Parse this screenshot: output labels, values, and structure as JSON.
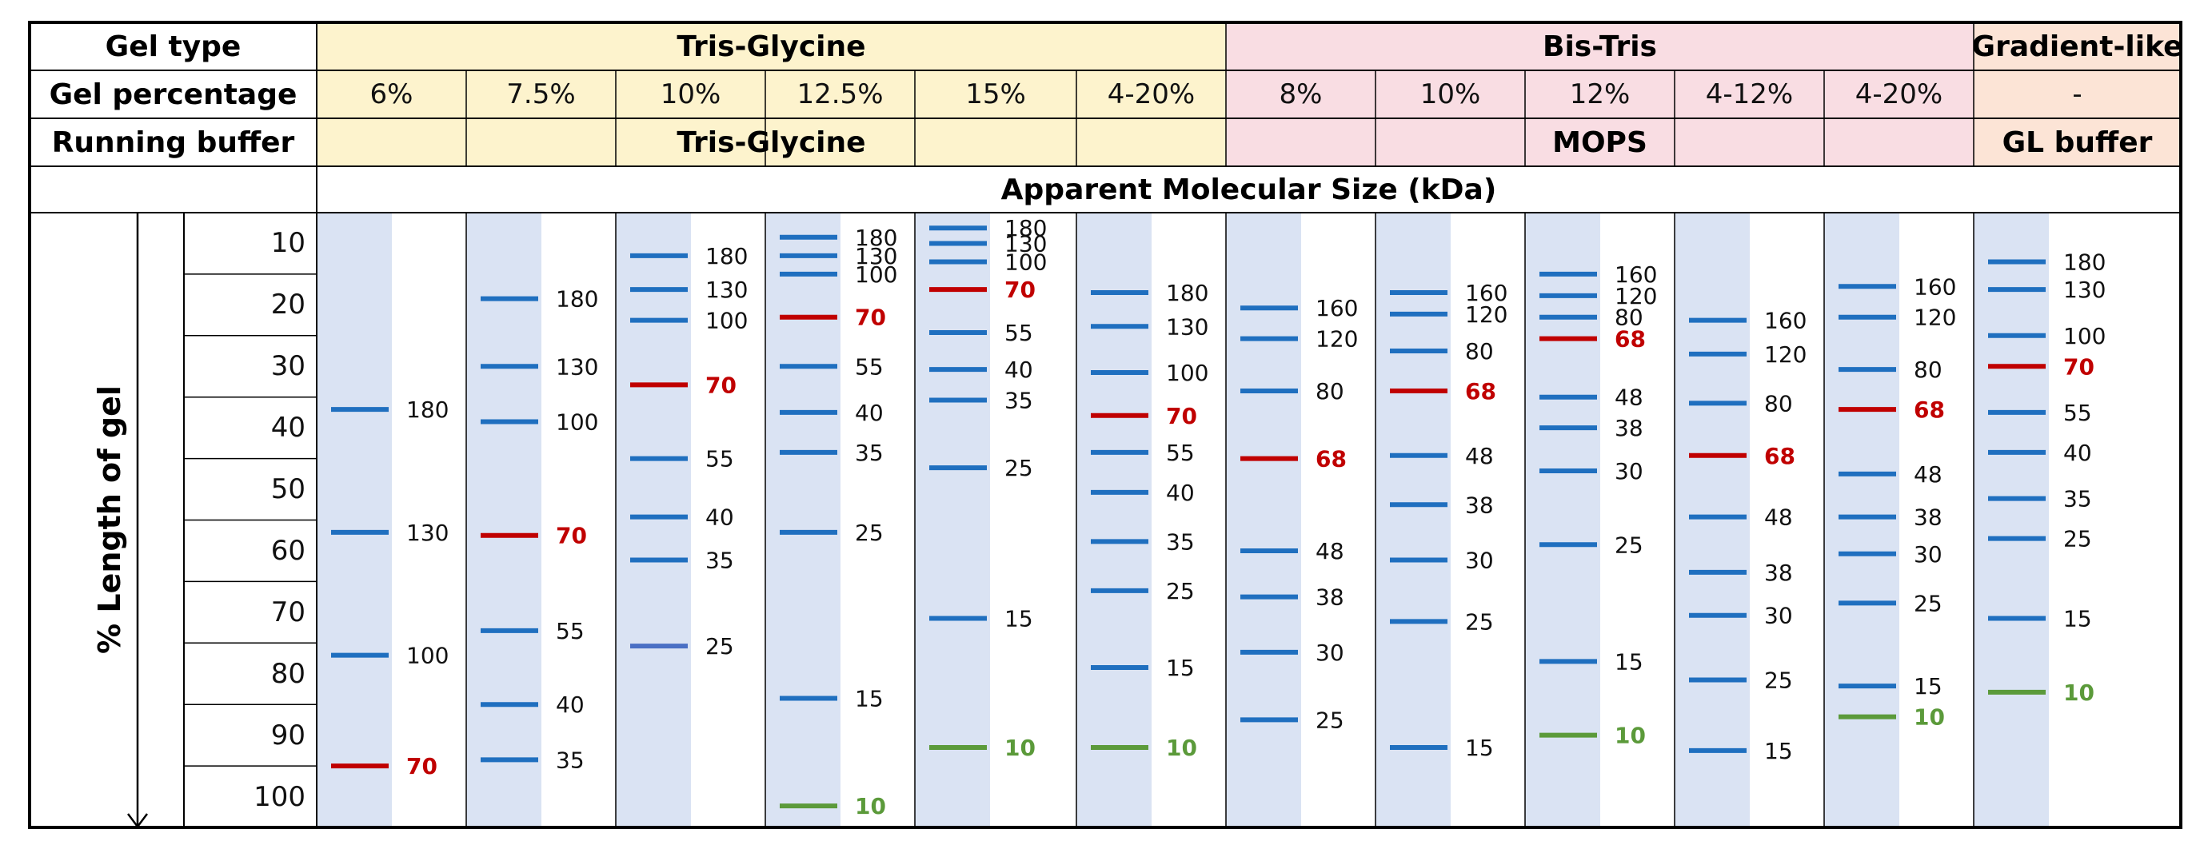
{
  "table": {
    "row_labels": {
      "gel_type": "Gel type",
      "gel_percentage": "Gel percentage",
      "running_buffer": "Running buffer"
    },
    "groups": [
      {
        "key": "tris",
        "type": "Tris-Glycine",
        "buffer": "Tris-Glycine",
        "lanes": [
          0,
          5
        ],
        "color": "#fdf3cd"
      },
      {
        "key": "bis",
        "type": "Bis-Tris",
        "buffer": "MOPS",
        "lanes": [
          6,
          10
        ],
        "color": "#f9dde3"
      },
      {
        "key": "grad",
        "type": "Gradient-like",
        "buffer": "GL buffer",
        "lanes": [
          11,
          11
        ],
        "color": "#fce4d6"
      }
    ],
    "apparent_size_label": "Apparent Molecular Size (kDa)",
    "y_axis_label": "% Length of gel",
    "ruler_ticks": [
      "10",
      "20",
      "30",
      "40",
      "50",
      "60",
      "70",
      "80",
      "90",
      "100"
    ]
  },
  "colors": {
    "lane_band": "#dae3f3",
    "marker_blue": "#1f6fbf",
    "marker_red": "#c00000",
    "marker_green": "#5b9a3a",
    "marker_purple_blue": "#4a6fc4"
  },
  "lanes": [
    {
      "percentage": "6%",
      "markers": [
        {
          "label": "180",
          "pos": 32,
          "color": "blue"
        },
        {
          "label": "130",
          "pos": 52,
          "color": "blue"
        },
        {
          "label": "100",
          "pos": 72,
          "color": "blue"
        },
        {
          "label": "70",
          "pos": 90,
          "color": "red"
        }
      ]
    },
    {
      "percentage": "7.5%",
      "markers": [
        {
          "label": "180",
          "pos": 14,
          "color": "blue"
        },
        {
          "label": "130",
          "pos": 25,
          "color": "blue"
        },
        {
          "label": "100",
          "pos": 34,
          "color": "blue"
        },
        {
          "label": "70",
          "pos": 52.5,
          "color": "red"
        },
        {
          "label": "55",
          "pos": 68,
          "color": "blue"
        },
        {
          "label": "40",
          "pos": 80,
          "color": "blue"
        },
        {
          "label": "35",
          "pos": 89,
          "color": "blue"
        }
      ]
    },
    {
      "percentage": "10%",
      "markers": [
        {
          "label": "180",
          "pos": 7,
          "color": "blue"
        },
        {
          "label": "130",
          "pos": 12.5,
          "color": "blue"
        },
        {
          "label": "100",
          "pos": 17.5,
          "color": "blue"
        },
        {
          "label": "70",
          "pos": 28,
          "color": "red"
        },
        {
          "label": "55",
          "pos": 40,
          "color": "blue"
        },
        {
          "label": "40",
          "pos": 49.5,
          "color": "blue"
        },
        {
          "label": "35",
          "pos": 56.5,
          "color": "blue"
        },
        {
          "label": "25",
          "pos": 70.5,
          "color": "purple_blue"
        }
      ]
    },
    {
      "percentage": "12.5%",
      "markers": [
        {
          "label": "180",
          "pos": 4,
          "color": "blue"
        },
        {
          "label": "130",
          "pos": 7,
          "color": "blue"
        },
        {
          "label": "100",
          "pos": 10,
          "color": "blue"
        },
        {
          "label": "70",
          "pos": 17,
          "color": "red"
        },
        {
          "label": "55",
          "pos": 25,
          "color": "blue"
        },
        {
          "label": "40",
          "pos": 32.5,
          "color": "blue"
        },
        {
          "label": "35",
          "pos": 39,
          "color": "blue"
        },
        {
          "label": "25",
          "pos": 52,
          "color": "blue"
        },
        {
          "label": "15",
          "pos": 79,
          "color": "blue"
        },
        {
          "label": "10",
          "pos": 96.5,
          "color": "green"
        }
      ]
    },
    {
      "percentage": "15%",
      "markers": [
        {
          "label": "180",
          "pos": 2.5,
          "color": "blue"
        },
        {
          "label": "130",
          "pos": 5,
          "color": "blue"
        },
        {
          "label": "100",
          "pos": 8,
          "color": "blue"
        },
        {
          "label": "70",
          "pos": 12.5,
          "color": "red"
        },
        {
          "label": "55",
          "pos": 19.5,
          "color": "blue"
        },
        {
          "label": "40",
          "pos": 25.5,
          "color": "blue"
        },
        {
          "label": "35",
          "pos": 30.5,
          "color": "blue"
        },
        {
          "label": "25",
          "pos": 41.5,
          "color": "blue"
        },
        {
          "label": "15",
          "pos": 66,
          "color": "blue"
        },
        {
          "label": "10",
          "pos": 87,
          "color": "green"
        }
      ]
    },
    {
      "percentage": "4-20%",
      "markers": [
        {
          "label": "180",
          "pos": 13,
          "color": "blue"
        },
        {
          "label": "130",
          "pos": 18.5,
          "color": "blue"
        },
        {
          "label": "100",
          "pos": 26,
          "color": "blue"
        },
        {
          "label": "70",
          "pos": 33,
          "color": "red"
        },
        {
          "label": "55",
          "pos": 39,
          "color": "blue"
        },
        {
          "label": "40",
          "pos": 45.5,
          "color": "blue"
        },
        {
          "label": "35",
          "pos": 53.5,
          "color": "blue"
        },
        {
          "label": "25",
          "pos": 61.5,
          "color": "blue"
        },
        {
          "label": "15",
          "pos": 74,
          "color": "blue"
        },
        {
          "label": "10",
          "pos": 87,
          "color": "green"
        }
      ]
    },
    {
      "percentage": "8%",
      "markers": [
        {
          "label": "160",
          "pos": 15.5,
          "color": "blue"
        },
        {
          "label": "120",
          "pos": 20.5,
          "color": "blue"
        },
        {
          "label": "80",
          "pos": 29,
          "color": "blue"
        },
        {
          "label": "68",
          "pos": 40,
          "color": "red"
        },
        {
          "label": "48",
          "pos": 55,
          "color": "blue"
        },
        {
          "label": "38",
          "pos": 62.5,
          "color": "blue"
        },
        {
          "label": "30",
          "pos": 71.5,
          "color": "blue"
        },
        {
          "label": "25",
          "pos": 82.5,
          "color": "blue"
        }
      ]
    },
    {
      "percentage": "10%",
      "markers": [
        {
          "label": "160",
          "pos": 13,
          "color": "blue"
        },
        {
          "label": "120",
          "pos": 16.5,
          "color": "blue"
        },
        {
          "label": "80",
          "pos": 22.5,
          "color": "blue"
        },
        {
          "label": "68",
          "pos": 29,
          "color": "red"
        },
        {
          "label": "48",
          "pos": 39.5,
          "color": "blue"
        },
        {
          "label": "38",
          "pos": 47.5,
          "color": "blue"
        },
        {
          "label": "30",
          "pos": 56.5,
          "color": "blue"
        },
        {
          "label": "25",
          "pos": 66.5,
          "color": "blue"
        },
        {
          "label": "15",
          "pos": 87,
          "color": "blue"
        }
      ]
    },
    {
      "percentage": "12%",
      "markers": [
        {
          "label": "160",
          "pos": 10,
          "color": "blue"
        },
        {
          "label": "120",
          "pos": 13.5,
          "color": "blue"
        },
        {
          "label": "80",
          "pos": 17,
          "color": "blue"
        },
        {
          "label": "68",
          "pos": 20.5,
          "color": "red"
        },
        {
          "label": "48",
          "pos": 30,
          "color": "blue"
        },
        {
          "label": "38",
          "pos": 35,
          "color": "blue"
        },
        {
          "label": "30",
          "pos": 42,
          "color": "blue"
        },
        {
          "label": "25",
          "pos": 54,
          "color": "blue"
        },
        {
          "label": "15",
          "pos": 73,
          "color": "blue"
        },
        {
          "label": "10",
          "pos": 85,
          "color": "green"
        }
      ]
    },
    {
      "percentage": "4-12%",
      "markers": [
        {
          "label": "160",
          "pos": 17.5,
          "color": "blue"
        },
        {
          "label": "120",
          "pos": 23,
          "color": "blue"
        },
        {
          "label": "80",
          "pos": 31,
          "color": "blue"
        },
        {
          "label": "68",
          "pos": 39.5,
          "color": "red"
        },
        {
          "label": "48",
          "pos": 49.5,
          "color": "blue"
        },
        {
          "label": "38",
          "pos": 58.5,
          "color": "blue"
        },
        {
          "label": "30",
          "pos": 65.5,
          "color": "blue"
        },
        {
          "label": "25",
          "pos": 76,
          "color": "blue"
        },
        {
          "label": "15",
          "pos": 87.5,
          "color": "blue"
        }
      ]
    },
    {
      "percentage": "4-20%",
      "markers": [
        {
          "label": "160",
          "pos": 12,
          "color": "blue"
        },
        {
          "label": "120",
          "pos": 17,
          "color": "blue"
        },
        {
          "label": "80",
          "pos": 25.5,
          "color": "blue"
        },
        {
          "label": "68",
          "pos": 32,
          "color": "red"
        },
        {
          "label": "48",
          "pos": 42.5,
          "color": "blue"
        },
        {
          "label": "38",
          "pos": 49.5,
          "color": "blue"
        },
        {
          "label": "30",
          "pos": 55.5,
          "color": "blue"
        },
        {
          "label": "25",
          "pos": 63.5,
          "color": "blue"
        },
        {
          "label": "15",
          "pos": 77,
          "color": "blue"
        },
        {
          "label": "10",
          "pos": 82,
          "color": "green"
        }
      ]
    },
    {
      "percentage": "-",
      "markers": [
        {
          "label": "180",
          "pos": 8,
          "color": "blue"
        },
        {
          "label": "130",
          "pos": 12.5,
          "color": "blue"
        },
        {
          "label": "100",
          "pos": 20,
          "color": "blue"
        },
        {
          "label": "70",
          "pos": 25,
          "color": "red"
        },
        {
          "label": "55",
          "pos": 32.5,
          "color": "blue"
        },
        {
          "label": "40",
          "pos": 39,
          "color": "blue"
        },
        {
          "label": "35",
          "pos": 46.5,
          "color": "blue"
        },
        {
          "label": "25",
          "pos": 53,
          "color": "blue"
        },
        {
          "label": "15",
          "pos": 66,
          "color": "blue"
        },
        {
          "label": "10",
          "pos": 78,
          "color": "green"
        }
      ]
    }
  ]
}
